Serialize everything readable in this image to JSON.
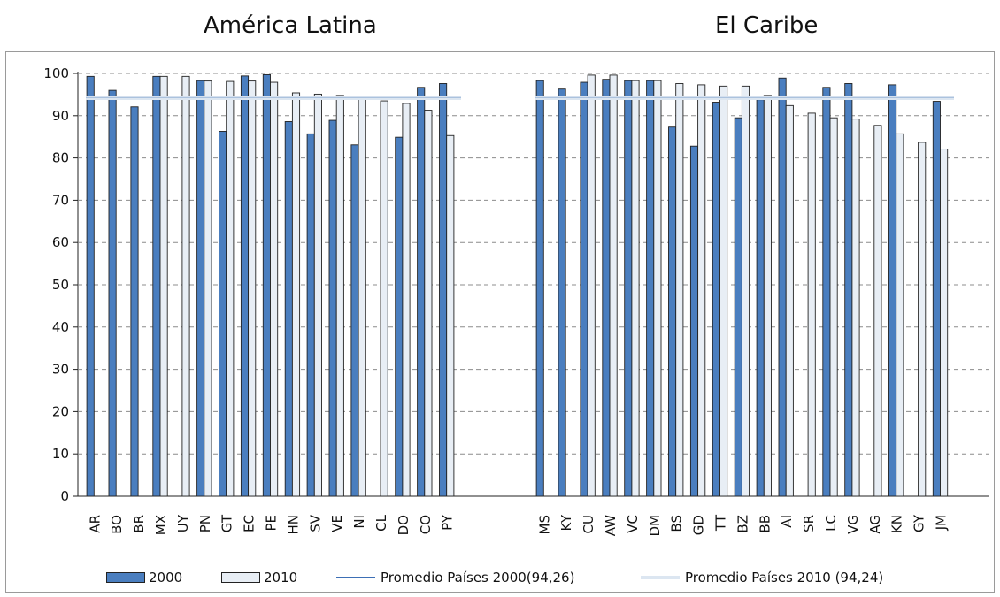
{
  "chart_data": {
    "type": "bar",
    "groups": [
      {
        "title": "América Latina",
        "categories": [
          "AR",
          "BO",
          "BR",
          "MX",
          "UY",
          "PN",
          "GT",
          "EC",
          "PE",
          "HN",
          "SV",
          "VE",
          "NI",
          "CL",
          "DO",
          "CO",
          "PY"
        ],
        "series": [
          {
            "name": "2000",
            "values": [
              99.3,
              96.0,
              92.1,
              99.3,
              null,
              98.3,
              86.3,
              99.4,
              99.7,
              88.6,
              85.7,
              88.9,
              83.1,
              null,
              84.9,
              96.7,
              97.6
            ]
          },
          {
            "name": "2010",
            "values": [
              null,
              null,
              null,
              99.3,
              99.3,
              98.2,
              98.1,
              98.2,
              97.9,
              95.4,
              95.1,
              94.8,
              93.9,
              93.5,
              92.9,
              91.3,
              85.3
            ]
          }
        ]
      },
      {
        "title": "El Caribe",
        "categories": [
          "MS",
          "KY",
          "CU",
          "AW",
          "VC",
          "DM",
          "BS",
          "GD",
          "TT",
          "BZ",
          "BB",
          "AI",
          "SR",
          "LC",
          "VG",
          "AG",
          "KN",
          "GY",
          "JM"
        ],
        "series": [
          {
            "name": "2000",
            "values": [
              98.3,
              96.3,
              97.9,
              98.6,
              98.3,
              98.3,
              87.3,
              82.8,
              93.2,
              89.5,
              93.8,
              98.9,
              null,
              96.7,
              97.6,
              null,
              97.3,
              null,
              93.4
            ]
          },
          {
            "name": "2010",
            "values": [
              null,
              null,
              99.6,
              99.6,
              98.3,
              98.3,
              97.6,
              97.3,
              97.0,
              97.0,
              94.8,
              92.4,
              90.6,
              89.5,
              89.2,
              87.7,
              85.7,
              83.7,
              82.1
            ]
          }
        ]
      }
    ],
    "averages": [
      {
        "name": "Promedio Países 2000(94,26)",
        "value": 94.26
      },
      {
        "name": "Promedio Países 2010 (94,24)",
        "value": 94.24
      }
    ],
    "yticks": [
      "0",
      "10",
      "20",
      "30",
      "40",
      "50",
      "60",
      "70",
      "80",
      "90",
      "100"
    ],
    "ylim": [
      0,
      100
    ],
    "grid": true,
    "legend_placement": "bottom",
    "colors": {
      "series_2000": "#4a7ebf",
      "series_2010": "#e8eef5",
      "avg_2000": "#3d6fb5",
      "avg_2010": "#dce6f1",
      "grid": "#8c8c8c",
      "bar_outline": "#222222"
    }
  }
}
